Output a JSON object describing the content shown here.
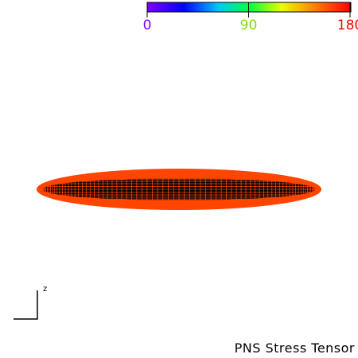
{
  "colorbar": {
    "ticks": [
      0,
      90,
      180
    ]
  },
  "axis_label": "z",
  "title": "PNS Stress Tensor"
}
